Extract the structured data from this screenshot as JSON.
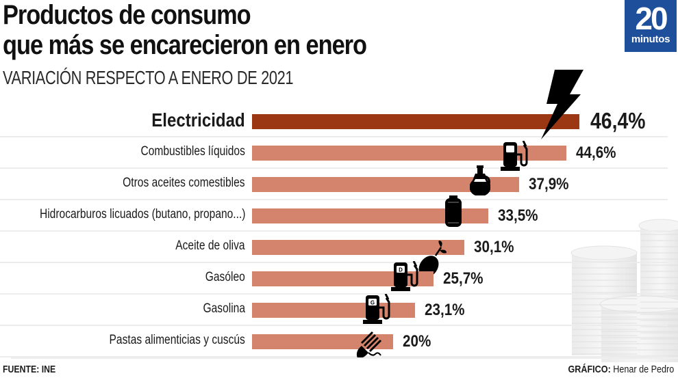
{
  "header": {
    "title_line1": "Productos de consumo",
    "title_line2": "que más se encarecieron en enero",
    "subtitle": "VARIACIÓN RESPECTO A ENERO DE 2021"
  },
  "logo": {
    "number": "20",
    "word": "minutos",
    "color": "#1d4f9b"
  },
  "footer": {
    "source_label": "FUENTE:",
    "source_value": "INE",
    "credit_label": "GRÁFICO:",
    "credit_value": "Henar de Pedro"
  },
  "colors": {
    "highlight_bar": "#9c3714",
    "bar": "#d4846c",
    "icon": "#000000"
  },
  "chart_data": {
    "type": "bar",
    "orientation": "horizontal",
    "title": "Productos de consumo que más se encarecieron en enero",
    "subtitle": "VARIACIÓN RESPECTO A ENERO DE 2021",
    "xlabel": "",
    "ylabel": "",
    "unit": "%",
    "xlim": [
      0,
      46.4
    ],
    "grid": false,
    "legend": "none",
    "categories": [
      "Electricidad",
      "Combustibles líquidos",
      "Otros aceites comestibles",
      "Hidrocarburos licuados (butano, propano...)",
      "Aceite de oliva",
      "Gasóleo",
      "Gasolina",
      "Pastas alimenticias y cuscús"
    ],
    "values": [
      46.4,
      44.6,
      37.9,
      33.5,
      30.1,
      25.7,
      23.1,
      20
    ],
    "value_labels": [
      "46,4%",
      "44,6%",
      "37,9%",
      "33,5%",
      "30,1%",
      "25,7%",
      "23,1%",
      "20%"
    ],
    "highlight": [
      true,
      false,
      false,
      false,
      false,
      false,
      false,
      false
    ],
    "icons": [
      "lightning-icon",
      "fuel-pump-icon",
      "oil-jar-icon",
      "gas-cylinder-icon",
      "olive-icon",
      "diesel-pump-icon",
      "gasoline-pump-icon",
      "pasta-icon"
    ]
  }
}
